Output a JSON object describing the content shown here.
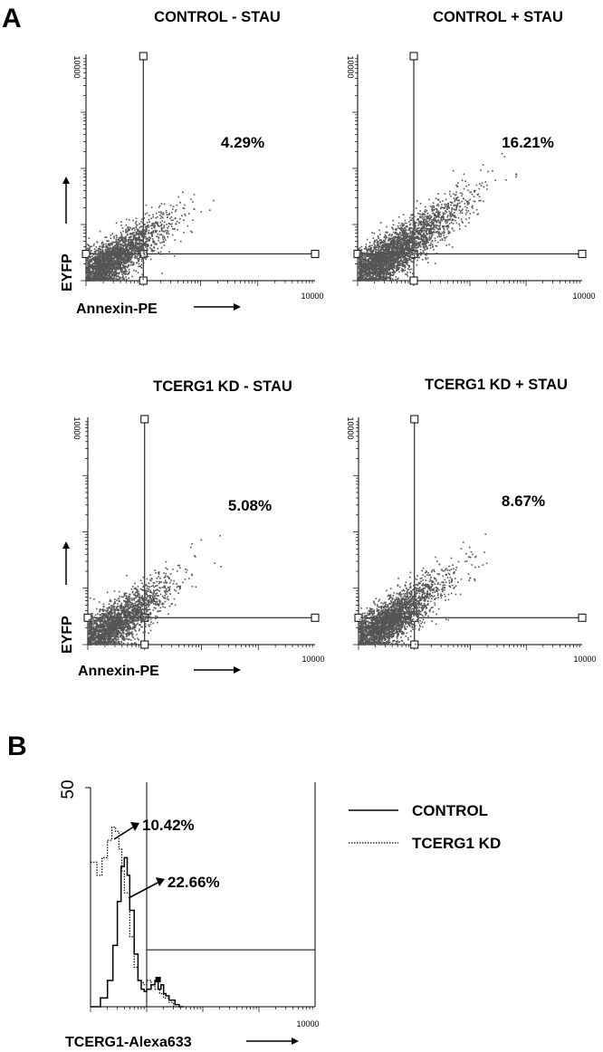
{
  "panels": {
    "A": "A",
    "B": "B"
  },
  "chart_data": [
    {
      "type": "scatter",
      "title": "CONTROL - STAU",
      "xlabel": "Annexin-PE",
      "ylabel": "EYFP",
      "x_scale": "log",
      "y_scale": "log",
      "xlim": [
        1,
        10000
      ],
      "ylim": [
        1,
        10000
      ],
      "x_end_tick_label": "10000",
      "y_end_tick_label": "10000",
      "quadrant_gate": {
        "x": 10,
        "y": 3
      },
      "annotation": "4.29%",
      "point_color": "#555555",
      "approx_event_count": 2500
    },
    {
      "type": "scatter",
      "title": "CONTROL + STAU",
      "xlabel": "",
      "ylabel": "",
      "x_scale": "log",
      "y_scale": "log",
      "xlim": [
        1,
        10000
      ],
      "ylim": [
        1,
        10000
      ],
      "x_end_tick_label": "10000",
      "y_end_tick_label": "10000",
      "quadrant_gate": {
        "x": 10,
        "y": 3
      },
      "annotation": "16.21%",
      "point_color": "#555555",
      "approx_event_count": 3300
    },
    {
      "type": "scatter",
      "title": "TCERG1 KD - STAU",
      "xlabel": "Annexin-PE",
      "ylabel": "EYFP",
      "x_scale": "log",
      "y_scale": "log",
      "xlim": [
        1,
        10000
      ],
      "ylim": [
        1,
        10000
      ],
      "x_end_tick_label": "10000",
      "y_end_tick_label": "10000",
      "quadrant_gate": {
        "x": 10,
        "y": 3
      },
      "annotation": "5.08%",
      "point_color": "#555555",
      "approx_event_count": 2300
    },
    {
      "type": "scatter",
      "title": "TCERG1 KD + STAU",
      "xlabel": "",
      "ylabel": "",
      "x_scale": "log",
      "y_scale": "log",
      "xlim": [
        1,
        10000
      ],
      "ylim": [
        1,
        10000
      ],
      "x_end_tick_label": "10000",
      "y_end_tick_label": "10000",
      "quadrant_gate": {
        "x": 10,
        "y": 3
      },
      "annotation": "8.67%",
      "point_color": "#555555",
      "approx_event_count": 2700
    },
    {
      "type": "line",
      "title": "",
      "xlabel": "TCERG1-Alexa633",
      "ylabel": "",
      "x_scale": "log",
      "xlim": [
        1,
        10000
      ],
      "ylim": [
        0,
        50
      ],
      "x_end_tick_label": "10000",
      "y_max_label": "50",
      "gate": {
        "x_start": 10,
        "x_end": 10000,
        "y": 13
      },
      "series": [
        {
          "name": "CONTROL",
          "style": "solid",
          "x": [
            1,
            1.5,
            2,
            2.5,
            3,
            3.5,
            4,
            4.5,
            5,
            6,
            7,
            8,
            9,
            10,
            12,
            14,
            16,
            18,
            20,
            22,
            25,
            28,
            32,
            38,
            45
          ],
          "y": [
            0,
            2,
            6,
            14,
            24,
            32,
            34,
            30,
            22,
            12,
            6,
            4,
            3.5,
            4,
            5,
            6,
            4,
            5,
            3,
            2.5,
            1.5,
            1.5,
            0.5,
            0,
            0
          ]
        },
        {
          "name": "TCERG1 KD",
          "style": "dotted",
          "x": [
            1,
            1.3,
            1.6,
            2,
            2.4,
            2.8,
            3.2,
            3.6,
            4,
            5,
            6,
            7,
            8,
            9,
            10,
            12,
            14,
            17,
            20,
            25,
            30
          ],
          "y": [
            33,
            30,
            34,
            38,
            41,
            40,
            36,
            31,
            26,
            16,
            9,
            6,
            5.5,
            5,
            6,
            5,
            4,
            3,
            2,
            1,
            0
          ]
        }
      ],
      "annotations": [
        {
          "text": "10.42%",
          "series": "TCERG1 KD"
        },
        {
          "text": "22.66%",
          "series": "CONTROL"
        }
      ]
    }
  ]
}
